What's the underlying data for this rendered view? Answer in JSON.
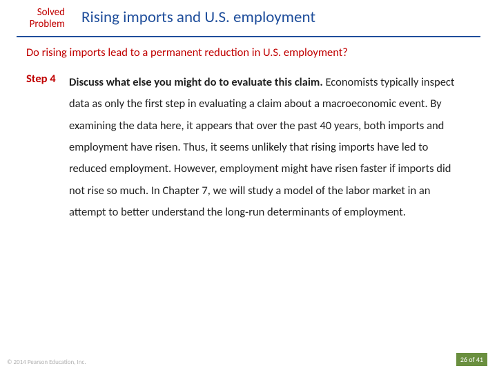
{
  "header": {
    "badge_line1": "Solved",
    "badge_line2": "Problem",
    "title": "Rising imports and U.S. employment"
  },
  "question": "Do rising imports lead to a permanent reduction in U.S. employment?",
  "step": {
    "label": "Step 4",
    "heading": "Discuss what else you might do to evaluate this claim.",
    "body": "Economists typically inspect data as only the first step in evaluating a claim about a macroeconomic event. By examining the data here, it appears that over the past 40 years, both imports and employment have risen. Thus, it seems unlikely that rising imports have led to reduced employment. However, employment might have risen faster if imports did not rise so much. In Chapter 7, we will study a model of the labor market in an attempt to better understand the long-run determinants of employment."
  },
  "footer": {
    "copyright": "© 2014 Pearson Education, Inc.",
    "page_current": "26",
    "page_of": " of ",
    "page_total": "41"
  },
  "colors": {
    "accent_red": "#c00000",
    "accent_blue": "#1f4e9b",
    "page_badge_bg": "#6a8f3f",
    "text": "#222222",
    "copyright": "#b0b0b0",
    "background": "#ffffff"
  }
}
